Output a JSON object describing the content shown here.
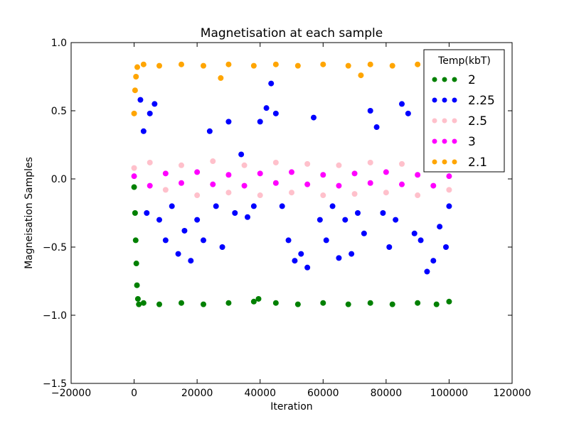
{
  "chart_data": {
    "type": "scatter",
    "title": "Magnetisation at each sample",
    "xlabel": "Iteration",
    "ylabel": "Magneisation Samples",
    "xlim": [
      -20000,
      120000
    ],
    "ylim": [
      -1.5,
      1.0
    ],
    "x_ticks": [
      -20000,
      0,
      20000,
      40000,
      60000,
      80000,
      100000,
      120000
    ],
    "y_ticks": [
      -1.5,
      -1.0,
      -0.5,
      0.0,
      0.5,
      1.0
    ],
    "x_tick_labels": [
      "−20000",
      "0",
      "20000",
      "40000",
      "60000",
      "80000",
      "100000",
      "120000"
    ],
    "y_tick_labels": [
      "−1.5",
      "−1.0",
      "−0.5",
      "0.0",
      "0.5",
      "1.0"
    ],
    "grid": false,
    "legend": {
      "title": "Temp(kbT)",
      "position": "top-right"
    },
    "series": [
      {
        "name": "2",
        "color": "#008000",
        "points": [
          [
            0,
            -0.06
          ],
          [
            300,
            -0.25
          ],
          [
            500,
            -0.45
          ],
          [
            700,
            -0.62
          ],
          [
            900,
            -0.78
          ],
          [
            1200,
            -0.88
          ],
          [
            1500,
            -0.92
          ],
          [
            3000,
            -0.91
          ],
          [
            8000,
            -0.92
          ],
          [
            15000,
            -0.91
          ],
          [
            22000,
            -0.92
          ],
          [
            30000,
            -0.91
          ],
          [
            38000,
            -0.9
          ],
          [
            39500,
            -0.88
          ],
          [
            45000,
            -0.91
          ],
          [
            52000,
            -0.92
          ],
          [
            60000,
            -0.91
          ],
          [
            68000,
            -0.92
          ],
          [
            75000,
            -0.91
          ],
          [
            82000,
            -0.92
          ],
          [
            90000,
            -0.91
          ],
          [
            96000,
            -0.92
          ],
          [
            100000,
            -0.9
          ]
        ]
      },
      {
        "name": "2.25",
        "color": "#0000ff",
        "points": [
          [
            2000,
            0.58
          ],
          [
            3000,
            0.35
          ],
          [
            4000,
            -0.25
          ],
          [
            5000,
            0.48
          ],
          [
            6500,
            0.55
          ],
          [
            8000,
            -0.3
          ],
          [
            10000,
            -0.45
          ],
          [
            12000,
            -0.2
          ],
          [
            14000,
            -0.55
          ],
          [
            16000,
            -0.38
          ],
          [
            18000,
            -0.6
          ],
          [
            20000,
            -0.3
          ],
          [
            22000,
            -0.45
          ],
          [
            24000,
            0.35
          ],
          [
            26000,
            -0.2
          ],
          [
            28000,
            -0.5
          ],
          [
            30000,
            0.42
          ],
          [
            32000,
            -0.25
          ],
          [
            34000,
            0.18
          ],
          [
            36000,
            -0.28
          ],
          [
            38000,
            -0.2
          ],
          [
            40000,
            0.42
          ],
          [
            42000,
            0.52
          ],
          [
            43500,
            0.7
          ],
          [
            45000,
            0.48
          ],
          [
            47000,
            -0.2
          ],
          [
            49000,
            -0.45
          ],
          [
            51000,
            -0.6
          ],
          [
            53000,
            -0.55
          ],
          [
            55000,
            -0.65
          ],
          [
            57000,
            0.45
          ],
          [
            59000,
            -0.3
          ],
          [
            61000,
            -0.45
          ],
          [
            63000,
            -0.2
          ],
          [
            65000,
            -0.58
          ],
          [
            67000,
            -0.3
          ],
          [
            69000,
            -0.55
          ],
          [
            71000,
            -0.25
          ],
          [
            73000,
            -0.4
          ],
          [
            75000,
            0.5
          ],
          [
            77000,
            0.38
          ],
          [
            79000,
            -0.25
          ],
          [
            81000,
            -0.5
          ],
          [
            83000,
            -0.3
          ],
          [
            85000,
            0.55
          ],
          [
            87000,
            0.48
          ],
          [
            89000,
            -0.4
          ],
          [
            91000,
            -0.45
          ],
          [
            93000,
            -0.68
          ],
          [
            95000,
            -0.6
          ],
          [
            97000,
            -0.35
          ],
          [
            99000,
            -0.5
          ],
          [
            100000,
            -0.2
          ]
        ]
      },
      {
        "name": "2.5",
        "color": "#ffc0cb",
        "points": [
          [
            0,
            0.08
          ],
          [
            5000,
            0.12
          ],
          [
            10000,
            -0.08
          ],
          [
            15000,
            0.1
          ],
          [
            20000,
            -0.12
          ],
          [
            25000,
            0.13
          ],
          [
            30000,
            -0.1
          ],
          [
            35000,
            0.1
          ],
          [
            40000,
            -0.12
          ],
          [
            45000,
            0.12
          ],
          [
            50000,
            -0.1
          ],
          [
            55000,
            0.11
          ],
          [
            60000,
            -0.12
          ],
          [
            65000,
            0.1
          ],
          [
            70000,
            -0.11
          ],
          [
            75000,
            0.12
          ],
          [
            80000,
            -0.1
          ],
          [
            85000,
            0.11
          ],
          [
            90000,
            -0.12
          ],
          [
            95000,
            0.1
          ],
          [
            100000,
            -0.08
          ]
        ]
      },
      {
        "name": "3",
        "color": "#ff00ff",
        "points": [
          [
            0,
            0.02
          ],
          [
            5000,
            -0.05
          ],
          [
            10000,
            0.04
          ],
          [
            15000,
            -0.03
          ],
          [
            20000,
            0.05
          ],
          [
            25000,
            -0.04
          ],
          [
            30000,
            0.03
          ],
          [
            35000,
            -0.05
          ],
          [
            40000,
            0.04
          ],
          [
            45000,
            -0.03
          ],
          [
            50000,
            0.05
          ],
          [
            55000,
            -0.04
          ],
          [
            60000,
            0.03
          ],
          [
            65000,
            -0.05
          ],
          [
            70000,
            0.04
          ],
          [
            75000,
            -0.03
          ],
          [
            80000,
            0.05
          ],
          [
            85000,
            -0.04
          ],
          [
            90000,
            0.03
          ],
          [
            95000,
            -0.05
          ],
          [
            100000,
            0.02
          ]
        ]
      },
      {
        "name": "2.1",
        "color": "#ffa500",
        "points": [
          [
            0,
            0.48
          ],
          [
            300,
            0.65
          ],
          [
            600,
            0.75
          ],
          [
            1000,
            0.82
          ],
          [
            3000,
            0.84
          ],
          [
            8000,
            0.83
          ],
          [
            15000,
            0.84
          ],
          [
            22000,
            0.83
          ],
          [
            27500,
            0.74
          ],
          [
            30000,
            0.84
          ],
          [
            38000,
            0.83
          ],
          [
            45000,
            0.84
          ],
          [
            52000,
            0.83
          ],
          [
            60000,
            0.84
          ],
          [
            68000,
            0.83
          ],
          [
            72000,
            0.76
          ],
          [
            75000,
            0.84
          ],
          [
            82000,
            0.83
          ],
          [
            90000,
            0.84
          ],
          [
            96000,
            0.83
          ],
          [
            100000,
            0.82
          ]
        ]
      }
    ]
  }
}
